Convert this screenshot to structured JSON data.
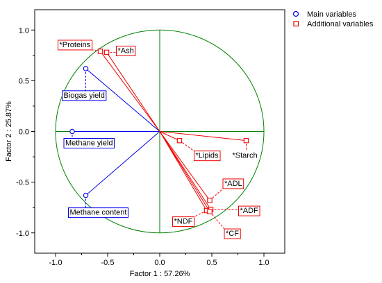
{
  "chart_data": {
    "type": "scatter",
    "subtype": "pca-loadings-circle",
    "xlabel": "Factor 1 : 57.26%",
    "ylabel": "Factor 2 : 25.87%",
    "xlim": [
      -1.2,
      1.2
    ],
    "ylim": [
      -1.2,
      1.2
    ],
    "xticks": [
      "-1.0",
      "-0.5",
      "0.0",
      "0.5",
      "1.0"
    ],
    "yticks": [
      "1.0",
      "0.5",
      "0.0",
      "-0.5",
      "-1.0"
    ],
    "xtick_values": [
      -1.0,
      -0.5,
      0.0,
      0.5,
      1.0
    ],
    "ytick_values": [
      1.0,
      0.5,
      0.0,
      -0.5,
      -1.0
    ],
    "grid": false,
    "unit_circle": true,
    "legend_position": "top-right",
    "colors": {
      "main": "#0000ee",
      "additional": "#ee0000",
      "circle": "#008000",
      "axes_lines": "#008000"
    },
    "series": [
      {
        "name": "Main variables",
        "marker": "circle",
        "color": "#0000ee",
        "points": [
          {
            "label": "Biogas yield",
            "x": -0.71,
            "y": 0.62
          },
          {
            "label": "Methane yield",
            "x": -0.84,
            "y": 0.0
          },
          {
            "label": "Methane content",
            "x": -0.71,
            "y": -0.63
          }
        ]
      },
      {
        "name": "Additional variables",
        "marker": "square",
        "color": "#ee0000",
        "points": [
          {
            "label": "*Proteins",
            "x": -0.57,
            "y": 0.79
          },
          {
            "label": "*Ash",
            "x": -0.51,
            "y": 0.78
          },
          {
            "label": "*Lipids",
            "x": 0.19,
            "y": -0.09
          },
          {
            "label": "*Starch",
            "x": 0.83,
            "y": -0.09
          },
          {
            "label": "*ADL",
            "x": 0.48,
            "y": -0.68
          },
          {
            "label": "*ADF",
            "x": 0.49,
            "y": -0.77
          },
          {
            "label": "*NDF",
            "x": 0.45,
            "y": -0.78
          },
          {
            "label": "*CF",
            "x": 0.48,
            "y": -0.79
          }
        ]
      }
    ]
  }
}
